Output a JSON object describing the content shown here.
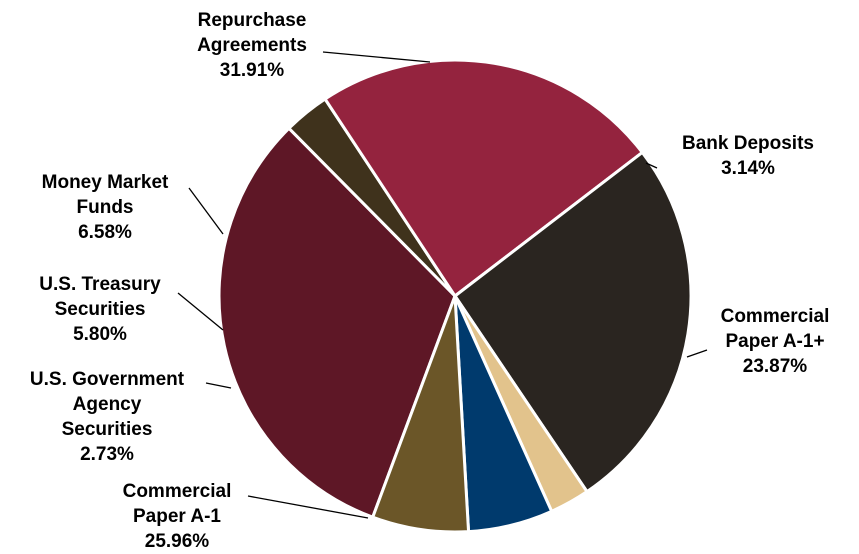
{
  "chart_data": {
    "type": "pie",
    "title": "",
    "unit": "%",
    "slices": [
      {
        "name": "Repurchase Agreements",
        "label_lines": [
          "Repurchase",
          "Agreements"
        ],
        "value": 31.91,
        "value_label": "31.91%",
        "color": "#5E1726"
      },
      {
        "name": "Bank Deposits",
        "label_lines": [
          "Bank Deposits"
        ],
        "value": 3.14,
        "value_label": "3.14%",
        "color": "#3F321C"
      },
      {
        "name": "Commercial Paper A-1+",
        "label_lines": [
          "Commercial",
          "Paper A-1+"
        ],
        "value": 23.87,
        "value_label": "23.87%",
        "color": "#94233E"
      },
      {
        "name": "Commercial Paper A-1",
        "label_lines": [
          "Commercial",
          "Paper A-1"
        ],
        "value": 25.96,
        "value_label": "25.96%",
        "color": "#2A2520"
      },
      {
        "name": "U.S. Government Agency Securities",
        "label_lines": [
          "U.S. Government",
          "Agency",
          "Securities"
        ],
        "value": 2.73,
        "value_label": "2.73%",
        "color": "#E2C38C"
      },
      {
        "name": "U.S. Treasury Securities",
        "label_lines": [
          "U.S. Treasury",
          "Securities"
        ],
        "value": 5.8,
        "value_label": "5.80%",
        "color": "#003A6D"
      },
      {
        "name": "Money Market Funds",
        "label_lines": [
          "Money Market",
          "Funds"
        ],
        "value": 6.58,
        "value_label": "6.58%",
        "color": "#6B5628"
      }
    ],
    "legend": "none",
    "labels": "outside with leader lines"
  }
}
